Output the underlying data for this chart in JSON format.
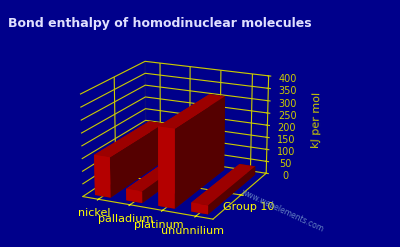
{
  "title": "Bond enthalpy of homodinuclear molecules",
  "ylabel": "kJ per mol",
  "group_label": "Group 10",
  "watermark": "www.webelements.com",
  "categories": [
    "nickel",
    "palladium",
    "platinum",
    "ununnilium"
  ],
  "values": [
    160,
    46,
    307,
    35
  ],
  "bar_color": "#cc0000",
  "background_color": "#00008b",
  "grid_color": "#cccc00",
  "text_color": "#ffff00",
  "title_color": "#e0e0ff",
  "ylim": [
    0,
    400
  ],
  "yticks": [
    0,
    50,
    100,
    150,
    200,
    250,
    300,
    350,
    400
  ],
  "title_fontsize": 9,
  "label_fontsize": 8,
  "tick_fontsize": 7,
  "elev": 18,
  "azim": -65
}
